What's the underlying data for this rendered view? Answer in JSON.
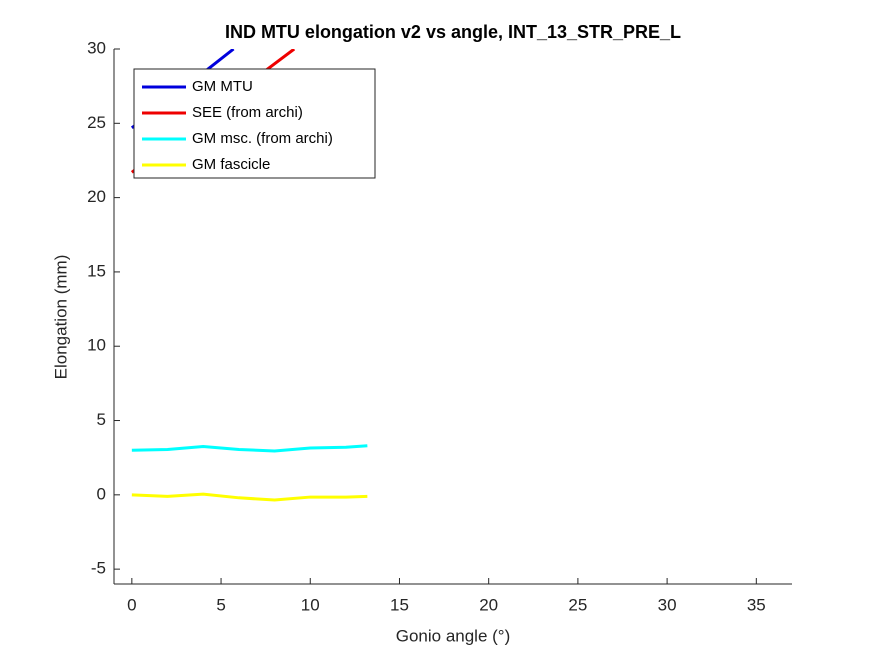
{
  "chart_data": {
    "type": "line",
    "title": "IND MTU elongation v2 vs angle, INT_13_STR_PRE_L",
    "x_label": "Gonio angle (°)",
    "y_label": "Elongation (mm)",
    "xlim": [
      -1,
      37
    ],
    "xticks": [
      0,
      5,
      10,
      15,
      20,
      25,
      30,
      35
    ],
    "ylim": [
      -6,
      30
    ],
    "yticks": [
      -5,
      0,
      5,
      10,
      15,
      20,
      25,
      30
    ],
    "legend": "upper-left",
    "series": [
      {
        "name": "GM MTU",
        "color": "#0000dd",
        "x": [
          0,
          2,
          4,
          5.7
        ],
        "values": [
          24.7,
          26.5,
          28.4,
          30
        ]
      },
      {
        "name": "SEE (from archi)",
        "color": "#ee0000",
        "x": [
          0,
          3,
          6,
          9.1
        ],
        "values": [
          21.7,
          24.5,
          27.2,
          30
        ]
      },
      {
        "name": "GM msc. (from archi)",
        "color": "#00ffff",
        "x": [
          0,
          2,
          4,
          6,
          8,
          10,
          12,
          13.2
        ],
        "values": [
          3.0,
          3.05,
          3.25,
          3.05,
          2.95,
          3.15,
          3.2,
          3.3
        ]
      },
      {
        "name": "GM fascicle",
        "color": "#ffff00",
        "x": [
          0,
          2,
          4,
          6,
          8,
          10,
          12,
          13.2
        ],
        "values": [
          0,
          -0.1,
          0.05,
          -0.2,
          -0.35,
          -0.15,
          -0.15,
          -0.1
        ]
      }
    ]
  }
}
